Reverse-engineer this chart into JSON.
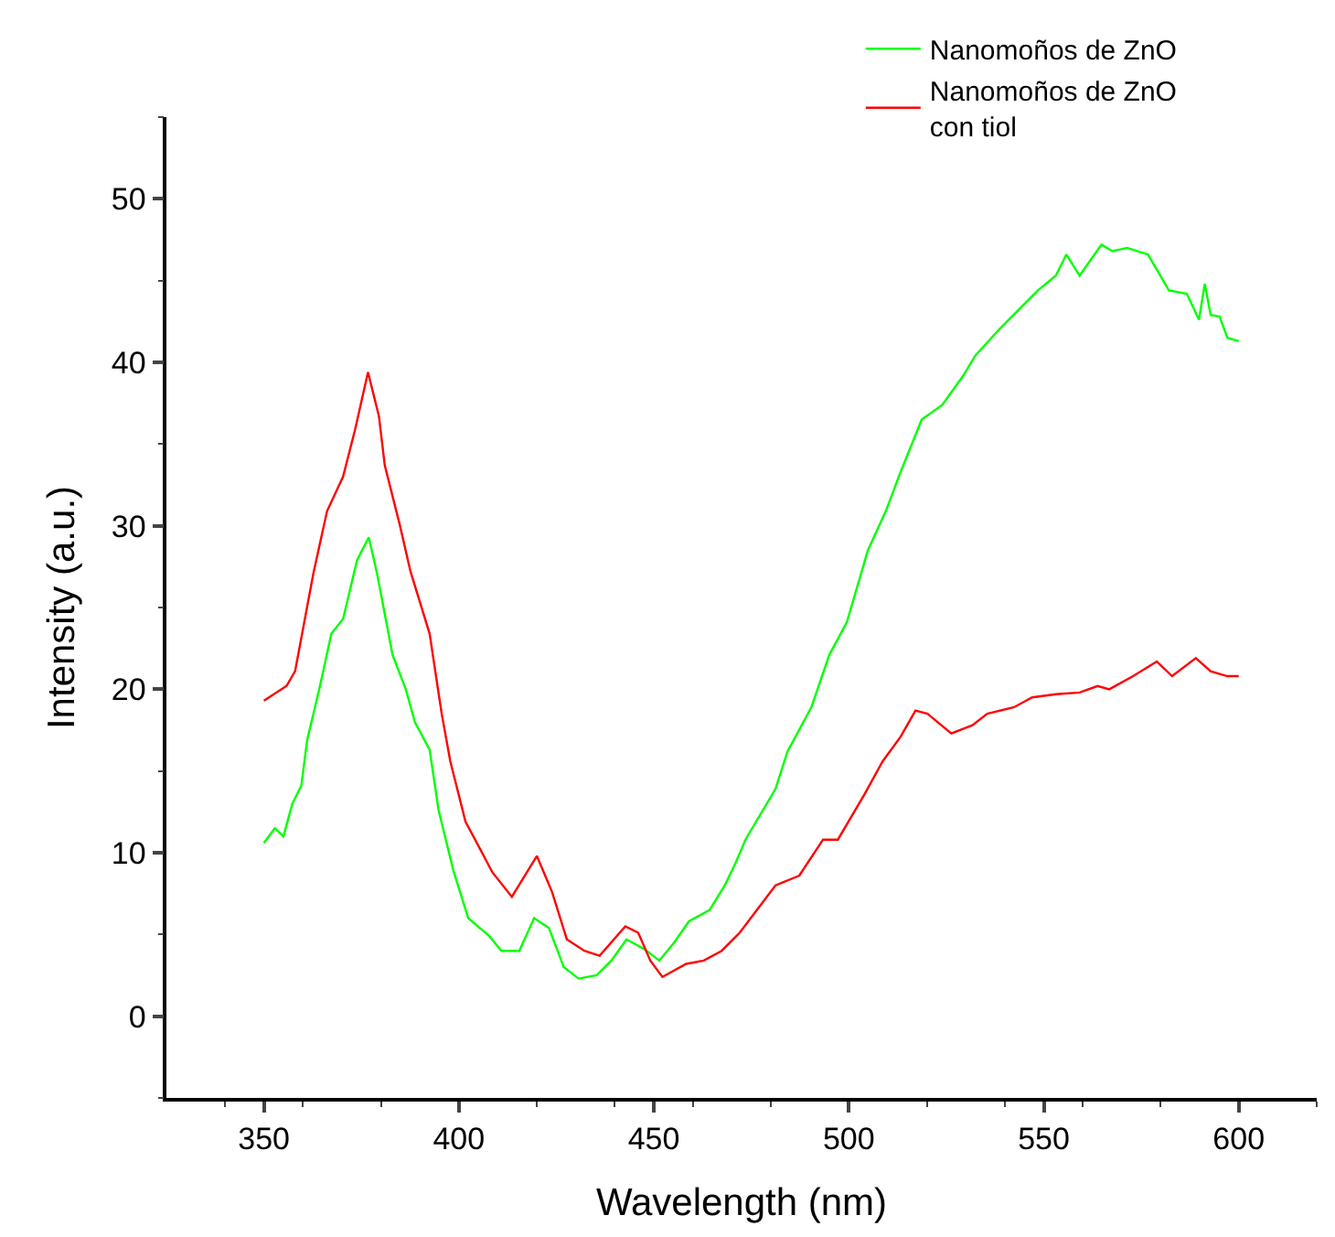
{
  "chart_data": {
    "type": "line",
    "xlabel": "Wavelength (nm)",
    "ylabel": "Intensity (a.u.)",
    "xlim": [
      325,
      620
    ],
    "xticks": [
      350,
      400,
      450,
      500,
      550,
      600
    ],
    "ylim": [
      -5,
      55
    ],
    "yticks": [
      0,
      10,
      20,
      30,
      40,
      50
    ],
    "legend": "top right",
    "marker": "none",
    "line_style": "solid",
    "series": [
      {
        "name": "Nanomoños de ZnO",
        "color": "#00ff00",
        "x": [
          350,
          352.8,
          355,
          357.3,
          359.6,
          361.1,
          364.2,
          367.3,
          370.3,
          373.9,
          376.9,
          379,
          383,
          386.4,
          388.7,
          392.5,
          394.8,
          398.6,
          402.4,
          407.8,
          410.9,
          415.5,
          419.3,
          423.1,
          426.9,
          430.7,
          435.3,
          439.1,
          443,
          447.6,
          451.4,
          455.2,
          459,
          464.3,
          468.2,
          471.2,
          473.5,
          481.2,
          484.3,
          490.4,
          495,
          499.5,
          504.9,
          509.5,
          513.3,
          518.7,
          524,
          529.4,
          532.4,
          538.5,
          543.9,
          548.5,
          553.1,
          555.8,
          559.2,
          564.8,
          567.6,
          571.4,
          576.7,
          582.1,
          586.7,
          589.8,
          591.3,
          592.8,
          595.1,
          597.1,
          600
        ],
        "values": [
          10.6,
          11.5,
          11,
          13,
          14.1,
          16.9,
          20,
          23.4,
          24.3,
          27.9,
          29.3,
          27.1,
          22.1,
          20,
          18,
          16.3,
          12.6,
          8.9,
          6,
          4.9,
          4,
          4,
          6,
          5.4,
          3,
          2.3,
          2.5,
          3.4,
          4.7,
          4.1,
          3.4,
          4.5,
          5.8,
          6.5,
          8,
          9.5,
          10.8,
          13.9,
          16.2,
          18.9,
          22.1,
          24.1,
          28.5,
          30.9,
          33.3,
          36.5,
          37.4,
          39.2,
          40.4,
          42,
          43.3,
          44.4,
          45.3,
          46.6,
          45.3,
          47.2,
          46.8,
          47,
          46.6,
          44.4,
          44.2,
          42.6,
          44.8,
          42.9,
          42.8,
          41.5,
          41.3
        ]
      },
      {
        "name": "Nanomoños de ZnO\ncon tiol",
        "color": "#ff0000",
        "x": [
          350,
          355.8,
          358,
          362.7,
          366.2,
          370.3,
          373.4,
          376.7,
          379.5,
          381,
          384.9,
          387.6,
          392.5,
          395.6,
          397.8,
          401.7,
          405.5,
          408.6,
          413.6,
          420,
          423.9,
          427.7,
          432.2,
          436.1,
          442.7,
          446,
          449.1,
          452.2,
          458.3,
          462.8,
          467.4,
          472,
          481.2,
          487.3,
          493.4,
          497.2,
          504.1,
          508.7,
          513.3,
          517.1,
          520.2,
          526.3,
          531.7,
          535.5,
          542.4,
          547,
          553.1,
          559.2,
          563.8,
          566.8,
          572.9,
          579,
          582.9,
          589,
          592.8,
          597.1,
          600
        ],
        "values": [
          19.3,
          20.2,
          21.1,
          27.1,
          30.9,
          33,
          35.9,
          39.4,
          36.7,
          33.7,
          30,
          27.2,
          23.4,
          18.5,
          15.6,
          11.9,
          10.2,
          8.8,
          7.3,
          9.8,
          7.6,
          4.7,
          4,
          3.7,
          5.5,
          5.1,
          3.4,
          2.4,
          3.2,
          3.4,
          4.0,
          5.1,
          8,
          8.6,
          10.8,
          10.8,
          13.6,
          15.6,
          17.1,
          18.7,
          18.5,
          17.3,
          17.8,
          18.5,
          18.9,
          19.5,
          19.7,
          19.8,
          20.2,
          20,
          20.8,
          21.7,
          20.8,
          21.9,
          21.1,
          20.8,
          20.8
        ]
      }
    ]
  }
}
